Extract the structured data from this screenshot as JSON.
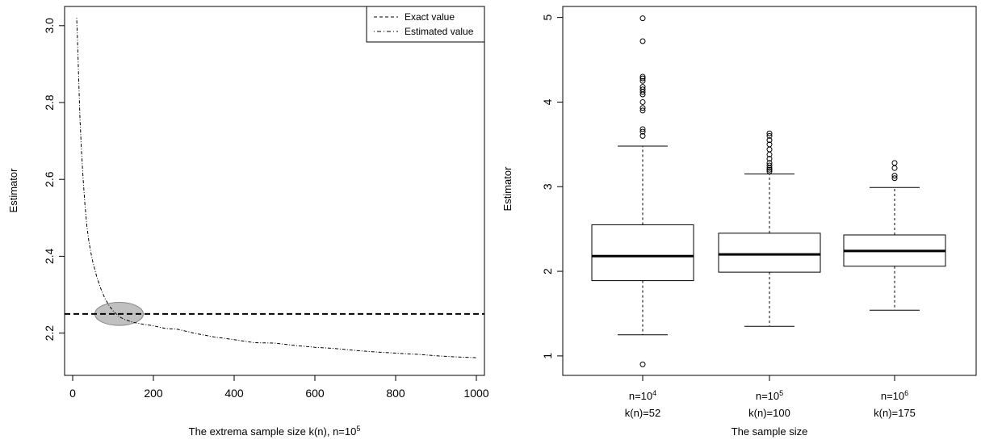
{
  "chart_data": [
    {
      "type": "line",
      "xlabel": "The extrema sample size k(n), n=10",
      "xlabel_sup": "5",
      "ylabel": "Estimator",
      "xlim": [
        -20,
        1020
      ],
      "ylim": [
        2.09,
        3.05
      ],
      "xticks": [
        0,
        200,
        400,
        600,
        800,
        1000
      ],
      "xtick_labels": [
        "0",
        "200",
        "400",
        "600",
        "800",
        "1000"
      ],
      "yticks": [
        2.2,
        2.4,
        2.6,
        2.8,
        3.0
      ],
      "ytick_labels": [
        "2.2",
        "2.4",
        "2.6",
        "2.8",
        "3.0"
      ],
      "legend_position": "top-right",
      "legend": [
        {
          "label": "Exact value",
          "style": "dashed"
        },
        {
          "label": "Estimated value",
          "style": "dotdash"
        }
      ],
      "series": [
        {
          "name": "Exact value",
          "style": "dashed",
          "y_constant": 2.25
        },
        {
          "name": "Estimated value",
          "style": "dotdash",
          "x": [
            10,
            12,
            15,
            18,
            22,
            26,
            30,
            35,
            40,
            45,
            50,
            55,
            60,
            70,
            80,
            90,
            100,
            110,
            120,
            130,
            150,
            170,
            200,
            230,
            260,
            300,
            350,
            400,
            450,
            500,
            550,
            600,
            650,
            700,
            750,
            800,
            850,
            900,
            950,
            1000
          ],
          "y": [
            3.02,
            2.96,
            2.86,
            2.76,
            2.67,
            2.6,
            2.54,
            2.48,
            2.44,
            2.41,
            2.385,
            2.365,
            2.345,
            2.315,
            2.29,
            2.272,
            2.258,
            2.248,
            2.24,
            2.235,
            2.228,
            2.224,
            2.219,
            2.212,
            2.21,
            2.2,
            2.19,
            2.183,
            2.175,
            2.174,
            2.168,
            2.163,
            2.16,
            2.155,
            2.151,
            2.148,
            2.145,
            2.141,
            2.138,
            2.136
          ]
        }
      ],
      "annotation": {
        "type": "ellipse",
        "center_x": 115,
        "center_y": 2.25,
        "radius_x": 60,
        "radius_y": 0.03,
        "fill": "#c0c0c0"
      }
    },
    {
      "type": "box",
      "xlabel": "The sample size",
      "ylabel": "Estimator",
      "ylim": [
        0.77,
        5.13
      ],
      "yticks": [
        1,
        2,
        3,
        4,
        5
      ],
      "ytick_labels": [
        "1",
        "2",
        "3",
        "4",
        "5"
      ],
      "categories": [
        {
          "line1": "n=10",
          "sup": "4",
          "line2": "k(n)=52"
        },
        {
          "line1": "n=10",
          "sup": "5",
          "line2": "k(n)=100"
        },
        {
          "line1": "n=10",
          "sup": "6",
          "line2": "k(n)=175"
        }
      ],
      "boxes": [
        {
          "whisker_low": 1.25,
          "q1": 1.89,
          "median": 2.18,
          "q3": 2.55,
          "whisker_high": 3.48,
          "outliers": [
            0.9,
            3.6,
            3.65,
            3.68,
            3.9,
            3.93,
            4.0,
            4.09,
            4.12,
            4.15,
            4.18,
            4.25,
            4.28,
            4.3,
            4.72,
            4.99
          ]
        },
        {
          "whisker_low": 1.35,
          "q1": 1.99,
          "median": 2.2,
          "q3": 2.45,
          "whisker_high": 3.15,
          "outliers": [
            3.18,
            3.2,
            3.22,
            3.25,
            3.28,
            3.33,
            3.38,
            3.44,
            3.5,
            3.55,
            3.6,
            3.63
          ]
        },
        {
          "whisker_low": 1.54,
          "q1": 2.06,
          "median": 2.24,
          "q3": 2.43,
          "whisker_high": 2.99,
          "outliers": [
            3.1,
            3.13,
            3.22,
            3.28
          ]
        }
      ]
    }
  ]
}
